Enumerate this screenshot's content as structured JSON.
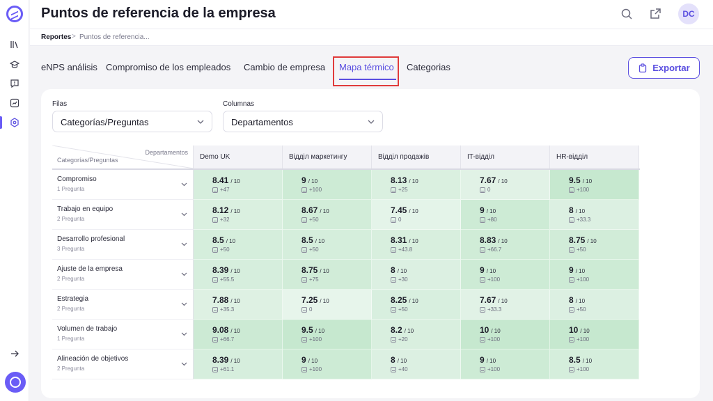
{
  "app": {
    "title": "Puntos de referencia de la empresa",
    "avatar_initials": "DC",
    "accent_color": "#5a4ee0",
    "rail_icons": [
      "library-icon",
      "graduation-cap-icon",
      "feedback-icon",
      "analytics-icon",
      "settings-hexagon-icon"
    ]
  },
  "breadcrumb": {
    "root": "Reportes",
    "separator": ">",
    "current": "Puntos de referencia..."
  },
  "tabs": [
    {
      "label": "eNPS análisis",
      "active": false
    },
    {
      "label": "Compromiso de los empleados",
      "active": false
    },
    {
      "label": "Cambio de empresa",
      "active": false
    },
    {
      "label": "Mapa térmico",
      "active": true
    },
    {
      "label": "Categorias",
      "active": false
    }
  ],
  "export_label": "Exportar",
  "filters": {
    "rows_label": "Filas",
    "rows_value": "Categorías/Preguntas",
    "cols_label": "Columnas",
    "cols_value": "Departamentos"
  },
  "heatmap": {
    "corner_top": "Departamentos",
    "corner_bottom": "Categorías/Preguntas",
    "scale_suffix": "/ 10",
    "columns": [
      "Demo UK",
      "Відділ маркетингу",
      "Відділ продажів",
      "IT-відділ",
      "HR-відділ"
    ],
    "rows": [
      {
        "name": "Compromiso",
        "sub": "1 Pregunta",
        "cells": [
          {
            "v": "8.41",
            "d": "+47",
            "score": 8.41
          },
          {
            "v": "9",
            "d": "+100",
            "score": 9
          },
          {
            "v": "8.13",
            "d": "+25",
            "score": 8.13
          },
          {
            "v": "7.67",
            "d": "0",
            "score": 7.67
          },
          {
            "v": "9.5",
            "d": "+100",
            "score": 9.5
          }
        ]
      },
      {
        "name": "Trabajo en equipo",
        "sub": "2 Pregunta",
        "cells": [
          {
            "v": "8.12",
            "d": "+32",
            "score": 8.12
          },
          {
            "v": "8.67",
            "d": "+50",
            "score": 8.67
          },
          {
            "v": "7.45",
            "d": "0",
            "score": 7.45
          },
          {
            "v": "9",
            "d": "+80",
            "score": 9
          },
          {
            "v": "8",
            "d": "+33.3",
            "score": 8
          }
        ]
      },
      {
        "name": "Desarrollo profesional",
        "sub": "3 Pregunta",
        "cells": [
          {
            "v": "8.5",
            "d": "+50",
            "score": 8.5
          },
          {
            "v": "8.5",
            "d": "+50",
            "score": 8.5
          },
          {
            "v": "8.31",
            "d": "+43.8",
            "score": 8.31
          },
          {
            "v": "8.83",
            "d": "+66.7",
            "score": 8.83
          },
          {
            "v": "8.75",
            "d": "+50",
            "score": 8.75
          }
        ]
      },
      {
        "name": "Ajuste de la empresa",
        "sub": "2 Pregunta",
        "cells": [
          {
            "v": "8.39",
            "d": "+55.5",
            "score": 8.39
          },
          {
            "v": "8.75",
            "d": "+75",
            "score": 8.75
          },
          {
            "v": "8",
            "d": "+30",
            "score": 8
          },
          {
            "v": "9",
            "d": "+100",
            "score": 9
          },
          {
            "v": "9",
            "d": "+100",
            "score": 9
          }
        ]
      },
      {
        "name": "Estrategia",
        "sub": "2 Pregunta",
        "cells": [
          {
            "v": "7.88",
            "d": "+35.3",
            "score": 7.88
          },
          {
            "v": "7.25",
            "d": "0",
            "score": 7.25
          },
          {
            "v": "8.25",
            "d": "+50",
            "score": 8.25
          },
          {
            "v": "7.67",
            "d": "+33.3",
            "score": 7.67
          },
          {
            "v": "8",
            "d": "+50",
            "score": 8
          }
        ]
      },
      {
        "name": "Volumen de trabajo",
        "sub": "1 Pregunta",
        "cells": [
          {
            "v": "9.08",
            "d": "+66.7",
            "score": 9.08
          },
          {
            "v": "9.5",
            "d": "+100",
            "score": 9.5
          },
          {
            "v": "8.2",
            "d": "+20",
            "score": 8.2
          },
          {
            "v": "10",
            "d": "+100",
            "score": 10
          },
          {
            "v": "10",
            "d": "+100",
            "score": 10
          }
        ]
      },
      {
        "name": "Alineación de objetivos",
        "sub": "2 Pregunta",
        "cells": [
          {
            "v": "8.39",
            "d": "+61.1",
            "score": 8.39
          },
          {
            "v": "9",
            "d": "+100",
            "score": 9
          },
          {
            "v": "8",
            "d": "+40",
            "score": 8
          },
          {
            "v": "9",
            "d": "+100",
            "score": 9
          },
          {
            "v": "8.5",
            "d": "+100",
            "score": 8.5
          }
        ]
      }
    ]
  }
}
